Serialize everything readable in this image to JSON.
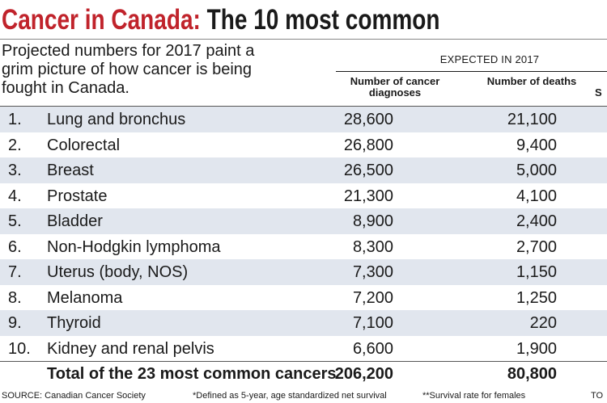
{
  "title": {
    "highlight": "Cancer in Canada:",
    "rest": " The 10 most common"
  },
  "intro": "Projected numbers for 2017 paint a grim picture of how cancer is being fought in Canada.",
  "header": {
    "group": "EXPECTED IN 2017",
    "col_diagnoses": "Number of cancer diagnoses",
    "col_deaths": "Number of deaths",
    "col_cut": "S"
  },
  "chart_data": {
    "type": "table",
    "columns": [
      "",
      "",
      "Number of cancer diagnoses",
      "Number of deaths"
    ],
    "rows": [
      {
        "rank": "1.",
        "site": "Lung and bronchus",
        "diagnoses": "28,600",
        "deaths": "21,100"
      },
      {
        "rank": "2.",
        "site": "Colorectal",
        "diagnoses": "26,800",
        "deaths": "9,400"
      },
      {
        "rank": "3.",
        "site": "Breast",
        "diagnoses": "26,500",
        "deaths": "5,000"
      },
      {
        "rank": "4.",
        "site": "Prostate",
        "diagnoses": "21,300",
        "deaths": "4,100"
      },
      {
        "rank": "5.",
        "site": "Bladder",
        "diagnoses": "8,900",
        "deaths": "2,400"
      },
      {
        "rank": "6.",
        "site": "Non-Hodgkin lymphoma",
        "diagnoses": "8,300",
        "deaths": "2,700"
      },
      {
        "rank": "7.",
        "site": "Uterus (body, NOS)",
        "diagnoses": "7,300",
        "deaths": "1,150"
      },
      {
        "rank": "8.",
        "site": "Melanoma",
        "diagnoses": "7,200",
        "deaths": "1,250"
      },
      {
        "rank": "9.",
        "site": "Thyroid",
        "diagnoses": "7,100",
        "deaths": "220"
      },
      {
        "rank": "10.",
        "site": "Kidney and renal pelvis",
        "diagnoses": "6,600",
        "deaths": "1,900"
      }
    ],
    "total": {
      "label": "Total of the 23 most common cancers",
      "diagnoses": "206,200",
      "deaths": "80,800"
    }
  },
  "footer": {
    "source": "SOURCE: Canadian Cancer Society",
    "note1": "*Defined as 5-year, age standardized net survival",
    "note2": "**Survival rate for females",
    "cut": "TO"
  },
  "colors": {
    "accent": "#c0232b",
    "shade": "#e1e6ee"
  }
}
